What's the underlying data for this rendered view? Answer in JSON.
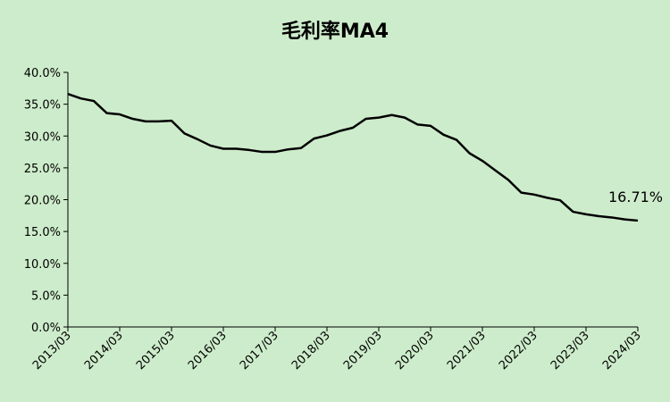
{
  "chart_data": {
    "type": "line",
    "title": "毛利率MA4",
    "xlabel": "",
    "ylabel": "",
    "ylim": [
      0,
      40
    ],
    "y_ticks": [
      0,
      5,
      10,
      15,
      20,
      25,
      30,
      35,
      40
    ],
    "y_tick_labels": [
      "0.0%",
      "5.0%",
      "10.0%",
      "15.0%",
      "20.0%",
      "25.0%",
      "30.0%",
      "35.0%",
      "40.0%"
    ],
    "x_tick_labels": [
      "2013/03",
      "2014/03",
      "2015/03",
      "2016/03",
      "2017/03",
      "2018/03",
      "2019/03",
      "2020/03",
      "2021/03",
      "2022/03",
      "2023/03",
      "2024/03"
    ],
    "grid": false,
    "x": [
      "2013/03",
      "2013/06",
      "2013/09",
      "2013/12",
      "2014/03",
      "2014/06",
      "2014/09",
      "2014/12",
      "2015/03",
      "2015/06",
      "2015/09",
      "2015/12",
      "2016/03",
      "2016/06",
      "2016/09",
      "2016/12",
      "2017/03",
      "2017/06",
      "2017/09",
      "2017/12",
      "2018/03",
      "2018/06",
      "2018/09",
      "2018/12",
      "2019/03",
      "2019/06",
      "2019/09",
      "2019/12",
      "2020/03",
      "2020/06",
      "2020/09",
      "2020/12",
      "2021/03",
      "2021/06",
      "2021/09",
      "2021/12",
      "2022/03",
      "2022/06",
      "2022/09",
      "2022/12",
      "2023/03",
      "2023/06",
      "2023/09",
      "2023/12",
      "2024/03"
    ],
    "series": [
      {
        "color": "#000000",
        "values": [
          36.6,
          35.9,
          35.5,
          33.6,
          33.4,
          32.7,
          32.3,
          32.3,
          32.4,
          30.4,
          29.5,
          28.5,
          28.0,
          28.0,
          27.8,
          27.5,
          27.5,
          27.9,
          28.1,
          29.6,
          30.1,
          30.8,
          31.3,
          32.7,
          32.9,
          33.3,
          32.9,
          31.8,
          31.6,
          30.2,
          29.4,
          27.3,
          26.1,
          24.6,
          23.1,
          21.1,
          20.8,
          20.3,
          19.9,
          18.1,
          17.7,
          17.4,
          17.2,
          16.9,
          16.71
        ]
      }
    ],
    "annotation": {
      "text": "16.71%"
    }
  }
}
